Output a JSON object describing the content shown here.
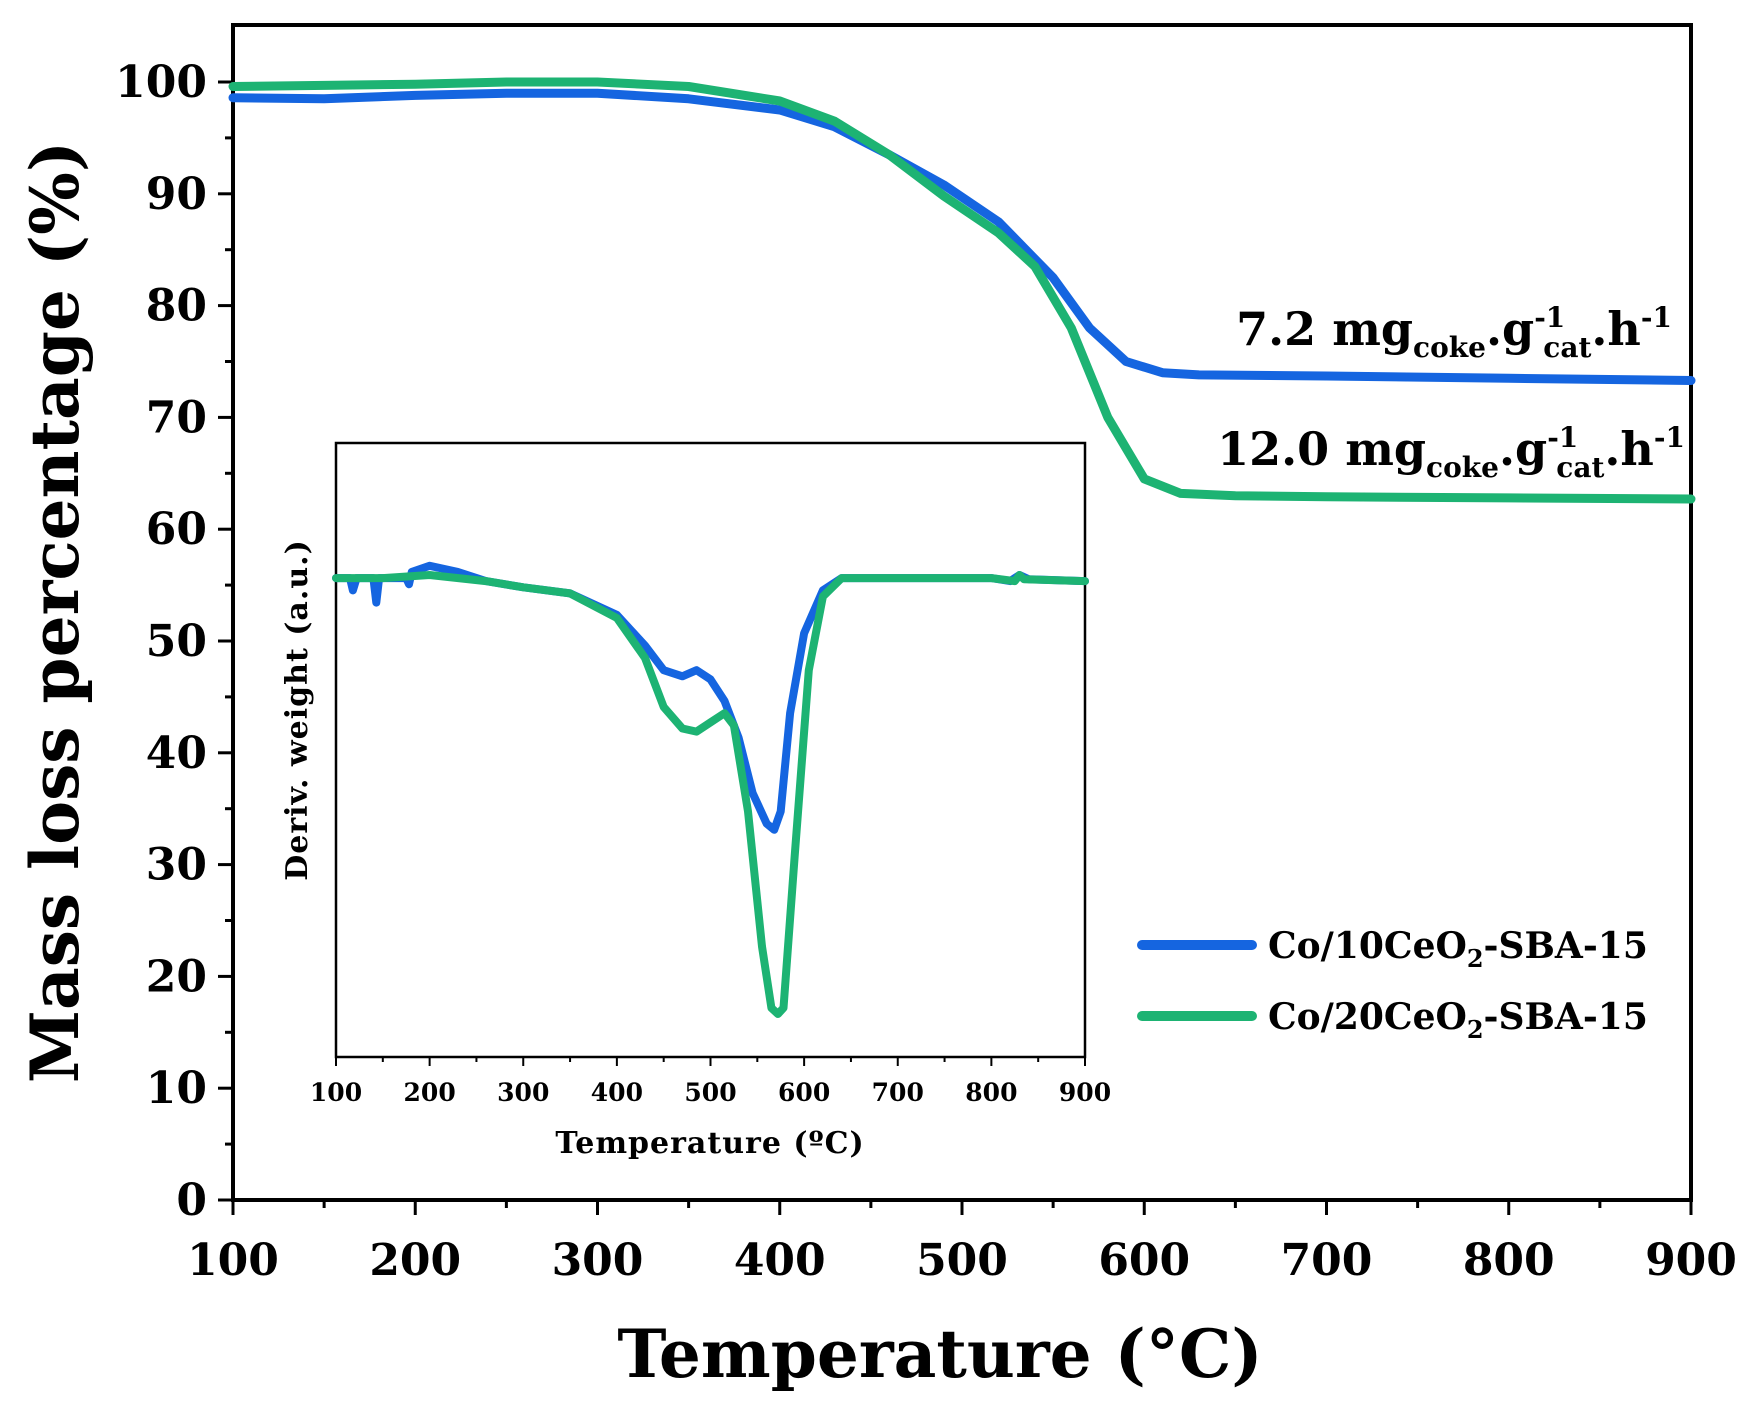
{
  "chart_data": [
    {
      "type": "line",
      "xlabel": "Temperature (°C)",
      "ylabel": "Mass loss percentage (%)",
      "xlim": [
        100,
        900
      ],
      "ylim": [
        0,
        105
      ],
      "xticks": [
        100,
        200,
        300,
        400,
        500,
        600,
        700,
        800,
        900
      ],
      "yticks": [
        0,
        10,
        20,
        30,
        40,
        50,
        60,
        70,
        80,
        90,
        100
      ],
      "series": [
        {
          "name": "Co/10CeO2-SBA-15",
          "color": "#1565e0",
          "x": [
            100,
            150,
            200,
            250,
            300,
            350,
            400,
            430,
            460,
            490,
            520,
            550,
            570,
            590,
            610,
            630,
            700,
            800,
            900
          ],
          "y": [
            98.6,
            98.5,
            98.8,
            99.0,
            99.0,
            98.5,
            97.5,
            96.0,
            93.5,
            90.8,
            87.5,
            82.5,
            78.0,
            75.0,
            74.0,
            73.8,
            73.7,
            73.5,
            73.3
          ]
        },
        {
          "name": "Co/20CeO2-SBA-15",
          "color": "#1db373",
          "x": [
            100,
            150,
            200,
            250,
            300,
            350,
            400,
            430,
            460,
            490,
            520,
            540,
            560,
            580,
            600,
            620,
            650,
            700,
            800,
            900
          ],
          "y": [
            99.6,
            99.7,
            99.8,
            100.0,
            100.0,
            99.6,
            98.3,
            96.5,
            93.5,
            89.8,
            86.5,
            83.5,
            78.0,
            70.0,
            64.5,
            63.2,
            63.0,
            62.9,
            62.8,
            62.7
          ]
        }
      ],
      "annotations": [
        {
          "main": "7.2 mg",
          "sub1": "coke",
          "mid": ".g",
          "sup1": "-1",
          "sub2": "cat",
          "tail": ".h",
          "sup2": "-1"
        },
        {
          "main": "12.0 mg",
          "sub1": "coke",
          "mid": ".g",
          "sup1": "-1",
          "sub2": "cat",
          "tail": ".h",
          "sup2": "-1"
        }
      ],
      "legend": [
        {
          "prefix": "Co/10CeO",
          "sub": "2",
          "suffix": "-SBA-15",
          "color": "#1565e0"
        },
        {
          "prefix": "Co/20CeO",
          "sub": "2",
          "suffix": "-SBA-15",
          "color": "#1db373"
        }
      ],
      "legend_position": "bottom-right"
    },
    {
      "type": "line",
      "role": "inset",
      "xlabel": "Temperature (ºC)",
      "ylabel": "Deriv. weight (a.u.)",
      "xlim": [
        100,
        900
      ],
      "ylim": [
        0,
        1
      ],
      "xticks": [
        100,
        200,
        300,
        400,
        500,
        600,
        700,
        800,
        900
      ],
      "series": [
        {
          "name": "Co/10CeO2-SBA-15",
          "color": "#1565e0",
          "x": [
            100,
            115,
            118,
            122,
            140,
            143,
            146,
            160,
            175,
            178,
            181,
            200,
            230,
            260,
            300,
            350,
            400,
            430,
            450,
            470,
            485,
            500,
            515,
            530,
            545,
            560,
            568,
            575,
            585,
            600,
            620,
            640,
            700,
            800,
            820,
            830,
            840,
            900
          ],
          "y": [
            0.78,
            0.78,
            0.76,
            0.78,
            0.78,
            0.74,
            0.78,
            0.78,
            0.78,
            0.77,
            0.79,
            0.8,
            0.79,
            0.775,
            0.765,
            0.755,
            0.72,
            0.67,
            0.63,
            0.62,
            0.63,
            0.615,
            0.58,
            0.52,
            0.43,
            0.38,
            0.37,
            0.4,
            0.56,
            0.69,
            0.76,
            0.78,
            0.78,
            0.78,
            0.775,
            0.785,
            0.778,
            0.775
          ]
        },
        {
          "name": "Co/20CeO2-SBA-15",
          "color": "#1db373",
          "x": [
            100,
            150,
            200,
            260,
            300,
            350,
            400,
            430,
            450,
            470,
            485,
            500,
            515,
            525,
            540,
            555,
            565,
            572,
            578,
            590,
            605,
            620,
            640,
            700,
            800,
            825,
            830,
            835,
            900
          ],
          "y": [
            0.78,
            0.78,
            0.785,
            0.775,
            0.765,
            0.755,
            0.715,
            0.65,
            0.57,
            0.535,
            0.53,
            0.545,
            0.56,
            0.54,
            0.4,
            0.18,
            0.08,
            0.07,
            0.08,
            0.33,
            0.63,
            0.75,
            0.78,
            0.78,
            0.78,
            0.775,
            0.785,
            0.778,
            0.775
          ]
        }
      ]
    }
  ]
}
